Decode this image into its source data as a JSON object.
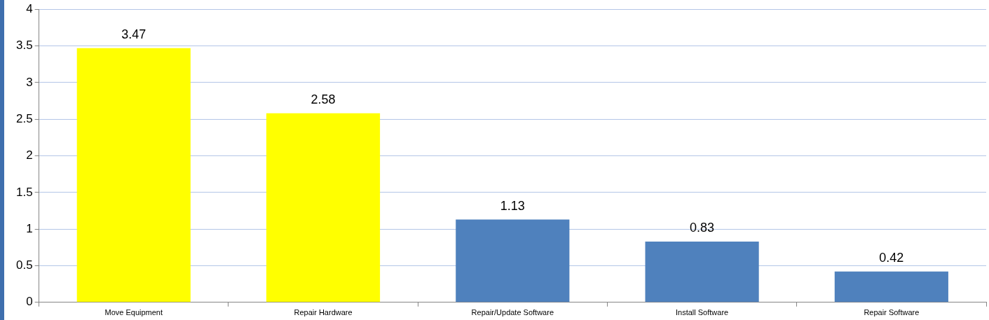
{
  "chart_data": {
    "type": "bar",
    "categories": [
      "Move Equipment",
      "Repair Hardware",
      "Repair/Update Software",
      "Install Software",
      "Repair Software"
    ],
    "values": [
      3.47,
      2.58,
      1.13,
      0.83,
      0.42
    ],
    "colors": [
      "#ffff00",
      "#ffff00",
      "#4f81bd",
      "#4f81bd",
      "#4f81bd"
    ],
    "ylim": [
      0,
      4
    ],
    "yticks": [
      0,
      0.5,
      1,
      1.5,
      2,
      2.5,
      3,
      3.5,
      4
    ],
    "grid": "y",
    "data_labels": true,
    "legend": false
  }
}
